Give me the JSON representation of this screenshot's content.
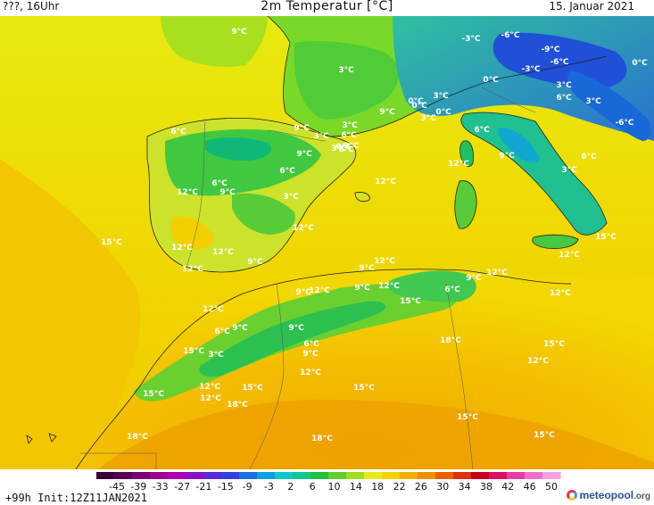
{
  "header": {
    "left": "???, 16Uhr",
    "title": "2m Temperatur [°C]",
    "date": "15. Januar 2021"
  },
  "footer": {
    "run": "+99h Init:12Z11JAN2021",
    "brand": "meteopool",
    "brand_suffix": ".org"
  },
  "legend": {
    "ticks": [
      "-45",
      "-39",
      "-33",
      "-27",
      "-21",
      "-15",
      "-9",
      "-3",
      "2",
      "6",
      "10",
      "14",
      "18",
      "22",
      "26",
      "30",
      "34",
      "38",
      "42",
      "46",
      "50"
    ],
    "colors": [
      "#3a0030",
      "#5a0050",
      "#7a0070",
      "#9a0090",
      "#b000b0",
      "#8a10c8",
      "#5a28d8",
      "#3040e0",
      "#1a70e0",
      "#10a0e0",
      "#10c8c8",
      "#10c890",
      "#20c040",
      "#60d030",
      "#a0dc20",
      "#e8e820",
      "#f8d000",
      "#f0b000",
      "#f09000",
      "#e86000",
      "#e03010",
      "#c80020",
      "#d81060",
      "#e040a0",
      "#f070c8",
      "#f8a0e0"
    ]
  },
  "temp_labels": [
    {
      "text": "9°C"
    },
    {
      "text": "3°C"
    },
    {
      "text": "-3°C"
    },
    {
      "text": "-6°C"
    },
    {
      "text": "-9°C"
    },
    {
      "text": "-6°C"
    },
    {
      "text": "0°C"
    },
    {
      "text": "-3°C"
    },
    {
      "text": "0°C"
    },
    {
      "text": "3°C"
    },
    {
      "text": "6°C"
    },
    {
      "text": "3°C"
    },
    {
      "text": "0°C"
    },
    {
      "text": "3°C"
    },
    {
      "text": "9°C"
    },
    {
      "text": "3°C"
    },
    {
      "text": "0°C"
    },
    {
      "text": "-6°C"
    },
    {
      "text": "6°C"
    },
    {
      "text": "3°C"
    },
    {
      "text": "9°C"
    },
    {
      "text": "3°C"
    },
    {
      "text": "6°C"
    },
    {
      "text": "9°C"
    },
    {
      "text": "6°C"
    },
    {
      "text": "3°C"
    },
    {
      "text": "0°C"
    },
    {
      "text": "6°C"
    },
    {
      "text": "12°C"
    },
    {
      "text": "9°C"
    },
    {
      "text": "6°C"
    },
    {
      "text": "3°C"
    },
    {
      "text": "6°C"
    },
    {
      "text": "9°C"
    },
    {
      "text": "6°C"
    },
    {
      "text": "12°C"
    },
    {
      "text": "9°C"
    },
    {
      "text": "3°C"
    },
    {
      "text": "12°C"
    },
    {
      "text": "12°C"
    },
    {
      "text": "15°C"
    },
    {
      "text": "12°C"
    },
    {
      "text": "12°C"
    },
    {
      "text": "9°C"
    },
    {
      "text": "9°C"
    },
    {
      "text": "12°C"
    },
    {
      "text": "12°C"
    },
    {
      "text": "9°C"
    },
    {
      "text": "12°C"
    },
    {
      "text": "9°C"
    },
    {
      "text": "12°C"
    },
    {
      "text": "6°C"
    },
    {
      "text": "9°C"
    },
    {
      "text": "12°C"
    },
    {
      "text": "12°C"
    },
    {
      "text": "12°C"
    },
    {
      "text": "9°C"
    },
    {
      "text": "6°C"
    },
    {
      "text": "9°C"
    },
    {
      "text": "15°C"
    },
    {
      "text": "12°C"
    },
    {
      "text": "6°C"
    },
    {
      "text": "3°C"
    },
    {
      "text": "15°C"
    },
    {
      "text": "9°C"
    },
    {
      "text": "12°C"
    },
    {
      "text": "18°C"
    },
    {
      "text": "15°C"
    },
    {
      "text": "12°C"
    },
    {
      "text": "15°C"
    },
    {
      "text": "15°C"
    },
    {
      "text": "12°C"
    },
    {
      "text": "15°C"
    },
    {
      "text": "18°C"
    },
    {
      "text": "15°C"
    },
    {
      "text": "18°C"
    },
    {
      "text": "18°C"
    },
    {
      "text": "15°C"
    },
    {
      "text": "15°C"
    },
    {
      "text": "0°C"
    },
    {
      "text": "12°C"
    }
  ]
}
